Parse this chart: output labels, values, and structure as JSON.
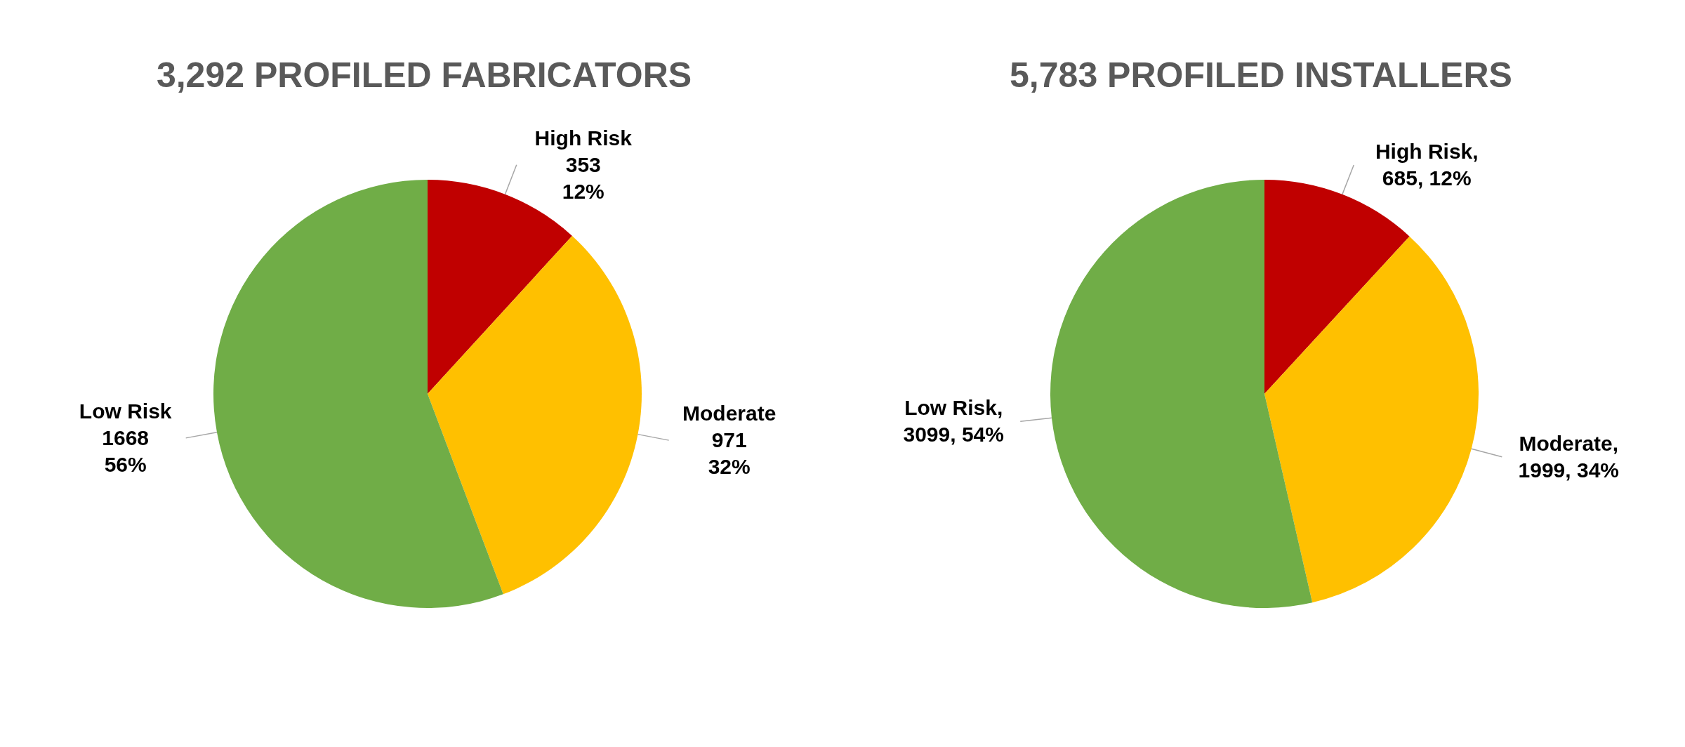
{
  "chart_data": [
    {
      "type": "pie",
      "title": "3,292 PROFILED FABRICATORS",
      "categories": [
        "High Risk",
        "Moderate",
        "Low Risk"
      ],
      "values": [
        353,
        971,
        1668
      ],
      "colors": [
        "#c00000",
        "#ffc000",
        "#70ad47"
      ],
      "value_labels": [
        "\n353\n12%",
        "\n971\n32%",
        "\n1668\n56%"
      ]
    },
    {
      "type": "pie",
      "title": "5,783 PROFILED INSTALLERS",
      "categories": [
        "High Risk",
        "Moderate",
        "Low Risk"
      ],
      "values": [
        685,
        1999,
        3099
      ],
      "colors": [
        "#c00000",
        "#ffc000",
        "#70ad47"
      ],
      "value_labels": [
        ",\n685, 12%",
        ",\n1999, 34%",
        ",\n3099, 54%"
      ]
    }
  ]
}
